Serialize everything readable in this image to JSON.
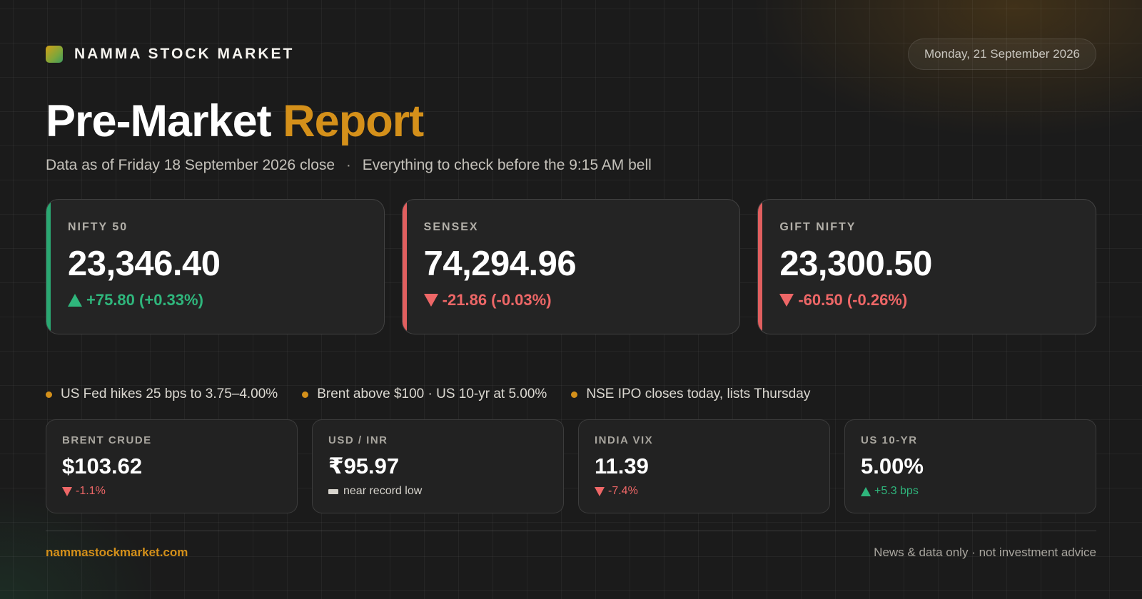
{
  "header": {
    "brand": "NAMMA STOCK MARKET",
    "date": "Monday, 21 September 2026"
  },
  "title": {
    "part1": "Pre-Market",
    "part2": "Report"
  },
  "subtitle": {
    "part1": "Data as of Friday 18 September 2026 close",
    "separator": "·",
    "part2": "Everything to check before the 9:15 AM bell"
  },
  "indices": [
    {
      "label": "NIFTY 50",
      "value": "23,346.40",
      "change": "+75.80 (+0.33%)",
      "direction": "up"
    },
    {
      "label": "SENSEX",
      "value": "74,294.96",
      "change": "-21.86 (-0.03%)",
      "direction": "down"
    },
    {
      "label": "GIFT NIFTY",
      "value": "23,300.50",
      "change": "-60.50 (-0.26%)",
      "direction": "down"
    }
  ],
  "news": [
    "US Fed hikes 25 bps to 3.75–4.00%",
    "Brent above $100 · US 10-yr at 5.00%",
    "NSE IPO closes today, lists Thursday"
  ],
  "metrics": [
    {
      "label": "BRENT CRUDE",
      "value": "$103.62",
      "change": "-1.1%",
      "direction": "down"
    },
    {
      "label": "USD / INR",
      "value": "₹95.97",
      "change": "near record low",
      "direction": "flat"
    },
    {
      "label": "INDIA VIX",
      "value": "11.39",
      "change": "-7.4%",
      "direction": "down"
    },
    {
      "label": "US 10-YR",
      "value": "5.00%",
      "change": "+5.3 bps",
      "direction": "up"
    }
  ],
  "footer": {
    "site": "nammastockmarket.com",
    "disclaimer": "News & data only · not investment advice"
  },
  "colors": {
    "accent": "#d4901a",
    "up": "#2fb67c",
    "down": "#ee6767",
    "background": "#1b1b1b"
  }
}
